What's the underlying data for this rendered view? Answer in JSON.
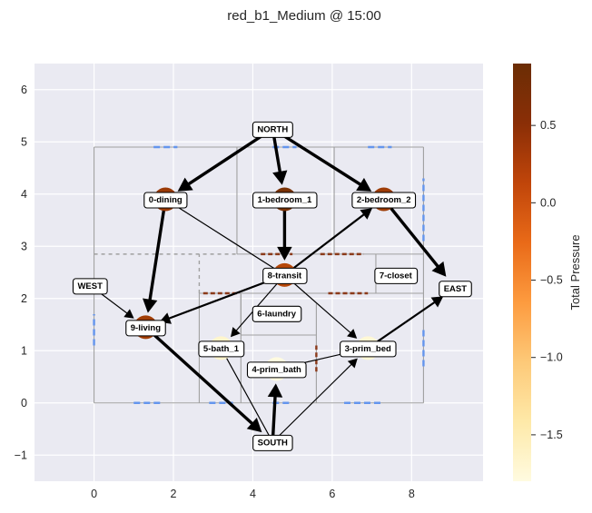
{
  "title": "red_b1_Medium @ 15:00",
  "colorbar": {
    "label": "Total Pressure",
    "ticks": [
      0.5,
      0.0,
      -0.5,
      -1.0,
      -1.5
    ],
    "tick_labels": [
      "0.5",
      "0.0",
      "−0.5",
      "−1.0",
      "−1.5"
    ],
    "range": [
      -1.8,
      0.9
    ],
    "colormap": [
      "#fffbe0",
      "#fee9a8",
      "#fdc978",
      "#fd9b3f",
      "#e96a18",
      "#c0450a",
      "#8a2e06",
      "#6b2d05"
    ]
  },
  "chart_data": {
    "type": "network-graph",
    "xlim": [
      -1.5,
      9.8
    ],
    "ylim": [
      -1.5,
      6.5
    ],
    "xticks": [
      0,
      2,
      4,
      6,
      8
    ],
    "yticks": [
      -1,
      0,
      1,
      2,
      3,
      4,
      5,
      6
    ],
    "grid": true,
    "nodes": [
      {
        "id": "NORTH",
        "label": "NORTH",
        "x": 4.5,
        "y": 5.25,
        "marker": false
      },
      {
        "id": "WEST",
        "label": "WEST",
        "x": -0.1,
        "y": 2.25,
        "marker": false
      },
      {
        "id": "EAST",
        "label": "EAST",
        "x": 9.1,
        "y": 2.2,
        "marker": false
      },
      {
        "id": "SOUTH",
        "label": "SOUTH",
        "x": 4.5,
        "y": -0.75,
        "marker": false
      },
      {
        "id": "0-dining",
        "label": "0-dining",
        "x": 1.8,
        "y": 3.9,
        "marker": true,
        "color": "#9a3a06"
      },
      {
        "id": "1-bedroom_1",
        "label": "1-bedroom_1",
        "x": 4.8,
        "y": 3.9,
        "marker": true,
        "color": "#7a3205"
      },
      {
        "id": "2-bedroom_2",
        "label": "2-bedroom_2",
        "x": 7.3,
        "y": 3.9,
        "marker": true,
        "color": "#9e3c06"
      },
      {
        "id": "8-transit",
        "label": "8-transit",
        "x": 4.8,
        "y": 2.45,
        "marker": true,
        "color": "#b6480a"
      },
      {
        "id": "7-closet",
        "label": "7-closet",
        "x": 7.6,
        "y": 2.45,
        "marker": false
      },
      {
        "id": "6-laundry",
        "label": "6-laundry",
        "x": 4.6,
        "y": 1.72,
        "marker": false
      },
      {
        "id": "9-living",
        "label": "9-living",
        "x": 1.3,
        "y": 1.45,
        "marker": true,
        "color": "#a13e06"
      },
      {
        "id": "5-bath_1",
        "label": "5-bath_1",
        "x": 3.2,
        "y": 1.05,
        "marker": true,
        "color": "#fff5cc"
      },
      {
        "id": "3-prim_bed",
        "label": "3-prim_bed",
        "x": 6.9,
        "y": 1.05,
        "marker": true,
        "color": "#fff8d5"
      },
      {
        "id": "4-prim_bath",
        "label": "4-prim_bath",
        "x": 4.6,
        "y": 0.65,
        "marker": true,
        "color": "#fffbe0"
      }
    ],
    "edges": [
      {
        "from": "NORTH",
        "to": "0-dining",
        "weight": "heavy"
      },
      {
        "from": "NORTH",
        "to": "1-bedroom_1",
        "weight": "heavy"
      },
      {
        "from": "NORTH",
        "to": "2-bedroom_2",
        "weight": "heavy"
      },
      {
        "from": "0-dining",
        "to": "9-living",
        "weight": "heavy"
      },
      {
        "from": "1-bedroom_1",
        "to": "8-transit",
        "weight": "heavy"
      },
      {
        "from": "2-bedroom_2",
        "to": "EAST",
        "weight": "heavy"
      },
      {
        "from": "9-living",
        "to": "SOUTH",
        "weight": "heavy"
      },
      {
        "from": "SOUTH",
        "to": "4-prim_bath",
        "weight": "heavy"
      },
      {
        "from": "0-dining",
        "to": "8-transit",
        "weight": "thin",
        "arrow": false
      },
      {
        "from": "WEST",
        "to": "9-living",
        "weight": "thin"
      },
      {
        "from": "8-transit",
        "to": "2-bedroom_2",
        "weight": "medium"
      },
      {
        "from": "8-transit",
        "to": "9-living",
        "weight": "medium"
      },
      {
        "from": "8-transit",
        "to": "5-bath_1",
        "weight": "thin"
      },
      {
        "from": "8-transit",
        "to": "3-prim_bed",
        "weight": "thin"
      },
      {
        "from": "3-prim_bed",
        "to": "EAST",
        "weight": "medium"
      },
      {
        "from": "4-prim_bath",
        "to": "3-prim_bed",
        "weight": "thin",
        "arrow": false
      },
      {
        "from": "SOUTH",
        "to": "3-prim_bed",
        "weight": "thin"
      },
      {
        "from": "5-bath_1",
        "to": "SOUTH",
        "weight": "thin",
        "arrow": false
      }
    ],
    "walls": [
      [
        0,
        4.9,
        8.3,
        4.9
      ],
      [
        0,
        0,
        8.3,
        0
      ],
      [
        0,
        0,
        0,
        4.9
      ],
      [
        8.3,
        0,
        8.3,
        4.9
      ],
      [
        3.6,
        2.85,
        3.6,
        4.9
      ],
      [
        6.05,
        2.85,
        6.05,
        4.9
      ],
      [
        3.6,
        2.85,
        8.3,
        2.85
      ],
      [
        2.65,
        0,
        2.65,
        2.1
      ],
      [
        2.65,
        2.1,
        8.3,
        2.1
      ],
      [
        7.1,
        2.1,
        7.1,
        2.85
      ],
      [
        3.7,
        0,
        3.7,
        2.1
      ],
      [
        3.7,
        1.3,
        5.6,
        1.3
      ],
      [
        3.7,
        1.3,
        3.7,
        2.1
      ],
      [
        5.6,
        0,
        5.6,
        1.9
      ]
    ],
    "dashed_walls": [
      [
        0,
        2.85,
        3.6,
        2.85
      ],
      [
        2.65,
        2.1,
        2.65,
        2.85
      ]
    ],
    "windows": [
      [
        1.5,
        4.9,
        2.1,
        4.9
      ],
      [
        4.5,
        4.9,
        5.1,
        4.9
      ],
      [
        6.9,
        4.9,
        7.5,
        4.9
      ],
      [
        8.3,
        3.1,
        8.3,
        4.3
      ],
      [
        8.3,
        0.7,
        8.3,
        1.4
      ],
      [
        6.3,
        0,
        7.3,
        0
      ],
      [
        1,
        0,
        1.7,
        0
      ],
      [
        2.9,
        0,
        3.5,
        0
      ],
      [
        4.5,
        0,
        5.0,
        0
      ],
      [
        0,
        1.1,
        0,
        1.7
      ]
    ],
    "doors": [
      [
        2.75,
        2.1,
        3.6,
        2.1
      ],
      [
        4.2,
        2.85,
        5.0,
        2.85
      ],
      [
        5.7,
        2.85,
        6.8,
        2.85
      ],
      [
        5.9,
        2.1,
        6.9,
        2.1
      ],
      [
        5.6,
        0.6,
        5.6,
        1.1
      ]
    ]
  }
}
